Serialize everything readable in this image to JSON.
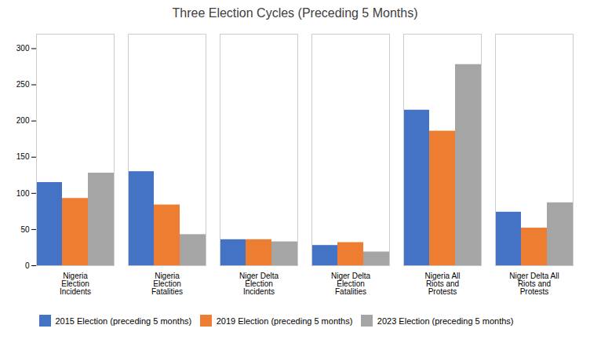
{
  "chart_data": {
    "type": "bar",
    "title": "Three Election Cycles (Preceding 5 Months)",
    "categories": [
      "Nigeria\nElection\nIncidents",
      "Nigeria\nElection\nFatalities",
      "Niger Delta\nElection\nIncidents",
      "Niger Delta\nElection\nFatalities",
      "Nigeria All\nRiots and\nProtests",
      "Niger Delta All\nRiots and\nProtests"
    ],
    "series": [
      {
        "name": "2015 Election (preceding 5 months)",
        "color": "#4472C4",
        "values": [
          115,
          130,
          36,
          28,
          215,
          74
        ]
      },
      {
        "name": "2019 Election (preceding 5 months)",
        "color": "#ED7D31",
        "values": [
          93,
          84,
          36,
          32,
          186,
          52
        ]
      },
      {
        "name": "2023 Election (preceding 5 months)",
        "color": "#A5A5A5",
        "values": [
          128,
          43,
          33,
          19,
          278,
          87
        ]
      }
    ],
    "ylim": [
      0,
      320
    ],
    "yticks": [
      0,
      50,
      100,
      150,
      200,
      250,
      300
    ],
    "grid": false,
    "legend": "bottom"
  }
}
